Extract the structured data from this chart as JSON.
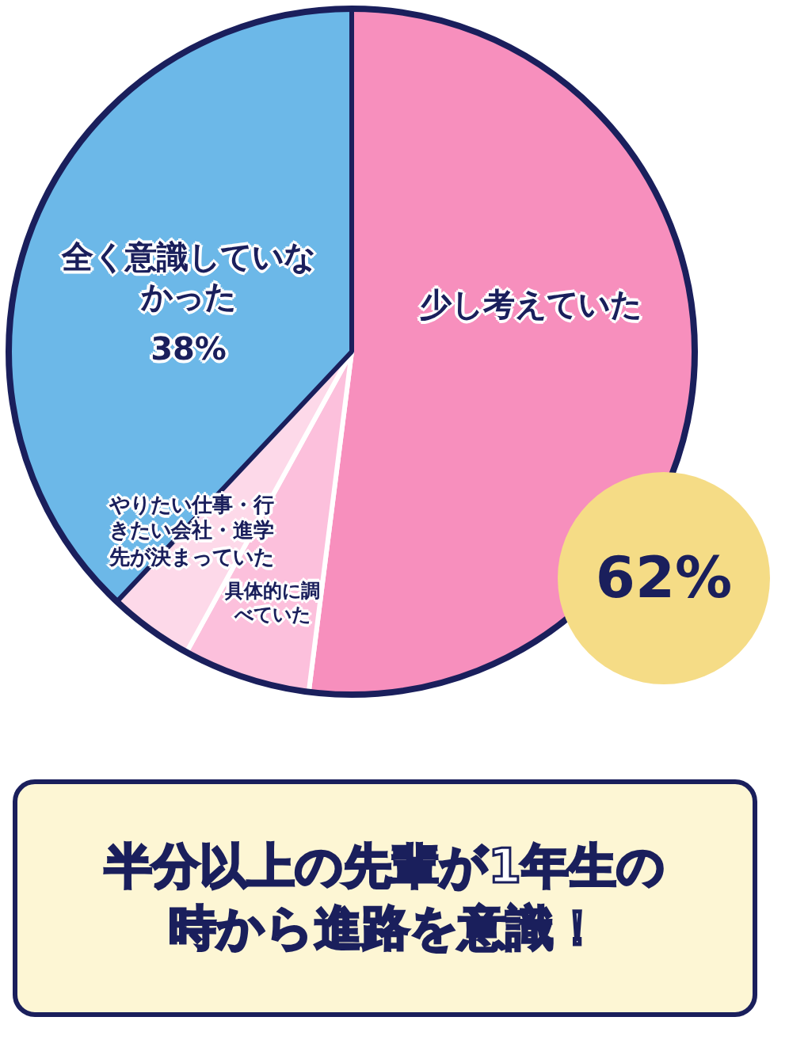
{
  "chart_data": {
    "type": "pie",
    "categories": [
      "少し考えていた",
      "具体的に調べていた",
      "やりたい仕事・行きたい会社・進学先が決まっていた",
      "全く意識していなかった"
    ],
    "values": [
      52,
      6,
      4,
      38
    ],
    "colors": [
      "#f78fbd",
      "#fcc0dc",
      "#fdd9e9",
      "#6cb8e8"
    ],
    "value_labels": [
      null,
      null,
      null,
      "38%"
    ],
    "legend": false,
    "annotations": [
      "62%",
      "半分以上の先輩が1年生の時から進路を意識！"
    ]
  }
}
